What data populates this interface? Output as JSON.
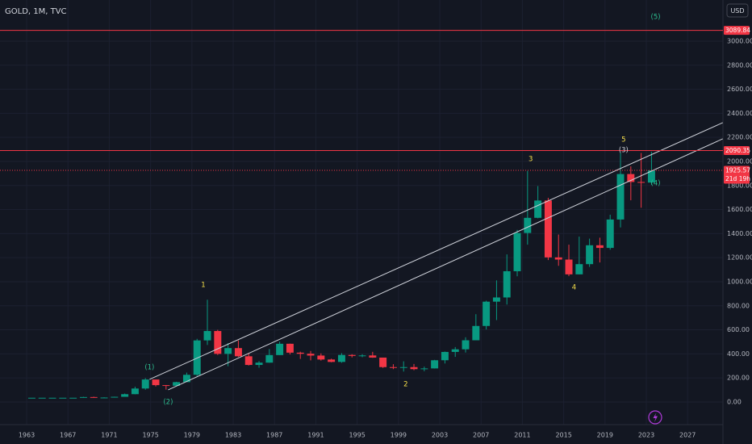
{
  "chart_data": {
    "type": "candlestick",
    "title": "GOLD, 1M, TVC",
    "currency_button": "USD",
    "x": [
      1963,
      1964,
      1965,
      1966,
      1967,
      1968,
      1969,
      1970,
      1971,
      1972,
      1973,
      1974,
      1975,
      1976,
      1977,
      1978,
      1979,
      1980,
      1981,
      1982,
      1983,
      1984,
      1985,
      1986,
      1987,
      1988,
      1989,
      1990,
      1991,
      1992,
      1993,
      1994,
      1995,
      1996,
      1997,
      1998,
      1999,
      2000,
      2001,
      2002,
      2003,
      2004,
      2005,
      2006,
      2007,
      2008,
      2009,
      2010,
      2011,
      2012,
      2013,
      2014,
      2015,
      2016,
      2017,
      2018,
      2019,
      2020,
      2021,
      2022,
      2023
    ],
    "series": [
      {
        "up_color": "#089981",
        "down_color": "#f23645",
        "open": [
          35,
          35,
          35,
          35,
          35,
          35,
          41,
          35,
          37,
          43,
          65,
          112,
          187,
          140,
          135,
          165,
          226,
          512,
          590,
          400,
          448,
          380,
          308,
          327,
          390,
          484,
          410,
          401,
          386,
          353,
          333,
          391,
          383,
          387,
          369,
          290,
          288,
          290,
          273,
          279,
          347,
          416,
          438,
          513,
          632,
          834,
          869,
          1087,
          1405,
          1531,
          1675,
          1202,
          1184,
          1061,
          1146,
          1303,
          1281,
          1517,
          1895,
          1829,
          1824
        ],
        "high": [
          35,
          35,
          35,
          35,
          35,
          43,
          44,
          39,
          44,
          70,
          127,
          198,
          187,
          141,
          168,
          244,
          525,
          850,
          600,
          490,
          512,
          406,
          340,
          440,
          502,
          485,
          418,
          424,
          404,
          360,
          406,
          397,
          397,
          417,
          368,
          314,
          338,
          316,
          294,
          350,
          419,
          457,
          538,
          730,
          842,
          1011,
          1227,
          1431,
          1921,
          1795,
          1697,
          1392,
          1308,
          1375,
          1358,
          1366,
          1557,
          2075,
          1959,
          2070,
          2080
        ],
        "low": [
          35,
          35,
          35,
          35,
          35,
          35,
          35,
          35,
          37,
          44,
          64,
          102,
          129,
          103,
          130,
          165,
          216,
          474,
          391,
          297,
          374,
          303,
          285,
          326,
          390,
          395,
          358,
          346,
          344,
          330,
          326,
          370,
          372,
          367,
          283,
          273,
          253,
          264,
          256,
          278,
          320,
          375,
          411,
          525,
          603,
          681,
          810,
          1045,
          1308,
          1527,
          1180,
          1132,
          1046,
          1061,
          1123,
          1160,
          1266,
          1451,
          1677,
          1615,
          1805
        ],
        "close": [
          35,
          35,
          35,
          35,
          35,
          41,
          35,
          37,
          43,
          65,
          112,
          187,
          140,
          135,
          165,
          226,
          512,
          590,
          400,
          448,
          380,
          308,
          327,
          390,
          484,
          410,
          401,
          386,
          353,
          333,
          391,
          383,
          387,
          369,
          290,
          288,
          290,
          273,
          279,
          347,
          416,
          438,
          513,
          632,
          834,
          869,
          1087,
          1405,
          1531,
          1675,
          1202,
          1184,
          1061,
          1146,
          1303,
          1281,
          1517,
          1895,
          1829,
          1824,
          1926
        ]
      }
    ],
    "xlim": [
      1960.42,
      2030.42
    ],
    "ylim": [
      -148,
      3342
    ],
    "xticks": [
      1963,
      1967,
      1971,
      1975,
      1979,
      1983,
      1987,
      1991,
      1995,
      1999,
      2003,
      2007,
      2011,
      2015,
      2019,
      2023,
      2027
    ],
    "yticks": [
      {
        "value": 0,
        "label": "0.00"
      },
      {
        "value": 200,
        "label": "200.00"
      },
      {
        "value": 400,
        "label": "400.00"
      },
      {
        "value": 600,
        "label": "600.00"
      },
      {
        "value": 800,
        "label": "800.00"
      },
      {
        "value": 1000,
        "label": "1000.00"
      },
      {
        "value": 1200,
        "label": "1200.00"
      },
      {
        "value": 1400,
        "label": "1400.00"
      },
      {
        "value": 1600,
        "label": "1600.00"
      },
      {
        "value": 1800,
        "label": "1800.00"
      },
      {
        "value": 2000,
        "label": "2000.00"
      },
      {
        "value": 2200,
        "label": "2200.00"
      },
      {
        "value": 2400,
        "label": "2400.00"
      },
      {
        "value": 2600,
        "label": "2600.00"
      },
      {
        "value": 2800,
        "label": "2800.00"
      },
      {
        "value": 3000,
        "label": "3000.00"
      }
    ],
    "grid": true,
    "price_lines": [
      {
        "value": 3089.84,
        "label": "3089.84",
        "color": "#f23645",
        "style": "solid"
      },
      {
        "value": 2090.35,
        "label": "2090.35",
        "color": "#f23645",
        "style": "solid"
      },
      {
        "value": 1925.57,
        "label": "1925.57",
        "countdown": "21d 19h",
        "color": "#f23645",
        "style": "dotted"
      }
    ],
    "channels": [
      {
        "x": [
          1974.9,
          2030.4
        ],
        "y": [
          188,
          2322
        ],
        "color": "#d1d4dc"
      },
      {
        "x": [
          1976.7,
          2030.4
        ],
        "y": [
          101,
          2188
        ],
        "color": "#d1d4dc"
      }
    ],
    "annotations": [
      {
        "text": "1",
        "x": 1980.1,
        "y": 973,
        "color": "#f7e04b"
      },
      {
        "text": "2",
        "x": 1999.7,
        "y": 148,
        "color": "#f7e04b"
      },
      {
        "text": "3",
        "x": 2011.8,
        "y": 2020,
        "color": "#f7e04b"
      },
      {
        "text": "4",
        "x": 2016.0,
        "y": 953,
        "color": "#f7e04b"
      },
      {
        "text": "5",
        "x": 2020.8,
        "y": 2181,
        "color": "#f7e04b"
      },
      {
        "text": "(1)",
        "x": 1974.9,
        "y": 289,
        "color": "#2dbd8f"
      },
      {
        "text": "(2)",
        "x": 1976.7,
        "y": 0,
        "color": "#2dbd8f"
      },
      {
        "text": "(3)",
        "x": 2020.8,
        "y": 2094,
        "color": "#c8ccd4"
      },
      {
        "text": "(4)",
        "x": 2023.9,
        "y": 1819,
        "color": "#2dbd8f"
      },
      {
        "text": "(5)",
        "x": 2023.9,
        "y": 3201,
        "color": "#2dbd8f"
      }
    ]
  }
}
